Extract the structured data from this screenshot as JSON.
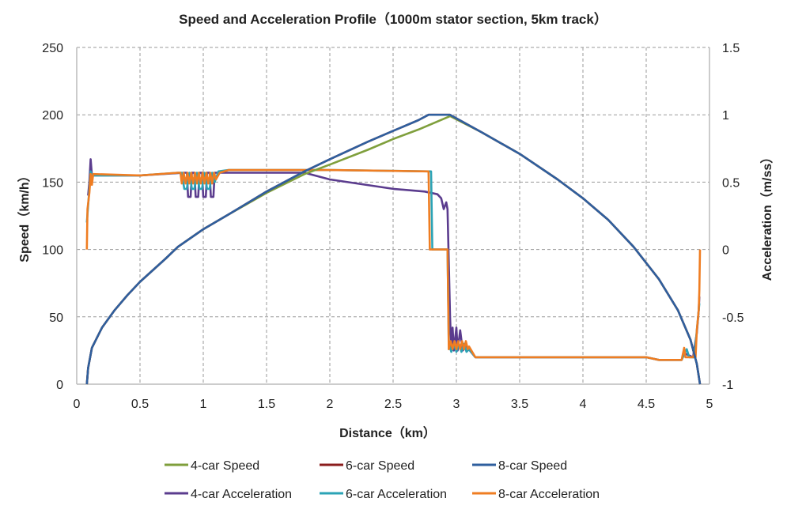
{
  "chart_data": {
    "type": "line",
    "title": "Speed and Acceleration Profile（1000m stator section, 5km track）",
    "xlabel": "Distance（km）",
    "ylabel": "Speed（km/h）",
    "y2label": "Acceleration（m/ss）",
    "xlim": [
      0,
      5
    ],
    "ylim": [
      0,
      250
    ],
    "y2lim": [
      -1,
      1.5
    ],
    "x_ticks": [
      "0",
      "0.5",
      "1",
      "1.5",
      "2",
      "2.5",
      "3",
      "3.5",
      "4",
      "4.5",
      "5"
    ],
    "y_ticks": [
      "0",
      "50",
      "100",
      "150",
      "200",
      "250"
    ],
    "y2_ticks": [
      "-1",
      "-0.5",
      "0",
      "0.5",
      "1",
      "1.5"
    ],
    "grid": true,
    "legend_position": "bottom",
    "series": [
      {
        "name": "4-car Speed",
        "axis": "left",
        "color": "#7f9f3c",
        "points": [
          [
            0.08,
            0
          ],
          [
            0.09,
            12
          ],
          [
            0.12,
            27
          ],
          [
            0.2,
            42
          ],
          [
            0.3,
            55
          ],
          [
            0.4,
            66
          ],
          [
            0.5,
            76
          ],
          [
            0.7,
            93
          ],
          [
            0.8,
            102
          ],
          [
            1.0,
            115
          ],
          [
            1.2,
            126
          ],
          [
            1.5,
            142
          ],
          [
            1.8,
            156
          ],
          [
            2.0,
            163
          ],
          [
            2.3,
            174
          ],
          [
            2.5,
            182
          ],
          [
            2.7,
            189
          ],
          [
            2.95,
            199
          ],
          [
            3.2,
            187
          ],
          [
            3.5,
            171
          ],
          [
            3.8,
            152
          ],
          [
            4.0,
            138
          ],
          [
            4.2,
            122
          ],
          [
            4.4,
            102
          ],
          [
            4.6,
            78
          ],
          [
            4.75,
            55
          ],
          [
            4.85,
            33
          ],
          [
            4.9,
            15
          ],
          [
            4.925,
            0
          ]
        ]
      },
      {
        "name": "6-car Speed",
        "axis": "left",
        "color": "#8b1d1d",
        "points": [
          [
            0.08,
            0
          ],
          [
            0.09,
            12
          ],
          [
            0.12,
            27
          ],
          [
            0.2,
            42
          ],
          [
            0.3,
            55
          ],
          [
            0.4,
            66
          ],
          [
            0.5,
            76
          ],
          [
            0.7,
            93
          ],
          [
            0.8,
            102
          ],
          [
            1.0,
            115
          ],
          [
            1.2,
            126
          ],
          [
            1.5,
            143
          ],
          [
            1.8,
            158
          ],
          [
            2.0,
            167
          ],
          [
            2.3,
            180
          ],
          [
            2.5,
            188
          ],
          [
            2.7,
            196
          ],
          [
            2.78,
            200
          ],
          [
            2.95,
            200
          ],
          [
            3.2,
            187
          ],
          [
            3.5,
            171
          ],
          [
            3.8,
            152
          ],
          [
            4.0,
            138
          ],
          [
            4.2,
            122
          ],
          [
            4.4,
            102
          ],
          [
            4.6,
            78
          ],
          [
            4.75,
            55
          ],
          [
            4.85,
            33
          ],
          [
            4.9,
            15
          ],
          [
            4.925,
            0
          ]
        ]
      },
      {
        "name": "8-car Speed",
        "axis": "left",
        "color": "#2f5f9e",
        "points": [
          [
            0.08,
            0
          ],
          [
            0.09,
            12
          ],
          [
            0.12,
            27
          ],
          [
            0.2,
            42
          ],
          [
            0.3,
            55
          ],
          [
            0.4,
            66
          ],
          [
            0.5,
            76
          ],
          [
            0.7,
            93
          ],
          [
            0.8,
            102
          ],
          [
            1.0,
            115
          ],
          [
            1.2,
            126
          ],
          [
            1.5,
            143
          ],
          [
            1.8,
            158
          ],
          [
            2.0,
            167
          ],
          [
            2.3,
            180
          ],
          [
            2.5,
            188
          ],
          [
            2.7,
            196
          ],
          [
            2.78,
            200
          ],
          [
            2.95,
            200
          ],
          [
            3.2,
            187
          ],
          [
            3.5,
            171
          ],
          [
            3.8,
            152
          ],
          [
            4.0,
            138
          ],
          [
            4.2,
            122
          ],
          [
            4.4,
            102
          ],
          [
            4.6,
            78
          ],
          [
            4.75,
            55
          ],
          [
            4.85,
            33
          ],
          [
            4.9,
            15
          ],
          [
            4.925,
            0
          ]
        ]
      },
      {
        "name": "4-car Acceleration",
        "axis": "right",
        "color": "#5b3c8e",
        "points": [
          [
            0.09,
            0.4
          ],
          [
            0.1,
            0.5
          ],
          [
            0.11,
            0.67
          ],
          [
            0.12,
            0.55
          ],
          [
            0.5,
            0.55
          ],
          [
            0.85,
            0.57
          ],
          [
            0.87,
            0.57
          ],
          [
            0.88,
            0.39
          ],
          [
            0.9,
            0.39
          ],
          [
            0.91,
            0.57
          ],
          [
            0.93,
            0.57
          ],
          [
            0.94,
            0.39
          ],
          [
            0.96,
            0.39
          ],
          [
            0.97,
            0.57
          ],
          [
            0.99,
            0.57
          ],
          [
            1.0,
            0.39
          ],
          [
            1.02,
            0.39
          ],
          [
            1.03,
            0.57
          ],
          [
            1.05,
            0.57
          ],
          [
            1.06,
            0.39
          ],
          [
            1.08,
            0.39
          ],
          [
            1.09,
            0.57
          ],
          [
            1.15,
            0.57
          ],
          [
            1.8,
            0.57
          ],
          [
            2.0,
            0.52
          ],
          [
            2.5,
            0.45
          ],
          [
            2.75,
            0.43
          ],
          [
            2.85,
            0.41
          ],
          [
            2.88,
            0.38
          ],
          [
            2.9,
            0.3
          ],
          [
            2.92,
            0.35
          ],
          [
            2.93,
            0.3
          ],
          [
            2.95,
            -0.5
          ],
          [
            2.96,
            -0.75
          ],
          [
            2.97,
            -0.58
          ],
          [
            2.98,
            -0.75
          ],
          [
            3.0,
            -0.58
          ],
          [
            3.01,
            -0.75
          ],
          [
            3.03,
            -0.6
          ],
          [
            3.05,
            -0.75
          ],
          [
            3.08,
            -0.72
          ],
          [
            3.15,
            -0.8
          ],
          [
            3.2,
            -0.8
          ],
          [
            4.0,
            -0.8
          ],
          [
            4.5,
            -0.8
          ],
          [
            4.6,
            -0.82
          ],
          [
            4.78,
            -0.82
          ],
          [
            4.8,
            -0.77
          ],
          [
            4.87,
            -0.8
          ],
          [
            4.9,
            -0.62
          ],
          [
            4.915,
            -0.45
          ],
          [
            4.92,
            -0.35
          ]
        ]
      },
      {
        "name": "6-car Acceleration",
        "axis": "right",
        "color": "#2ba3b6",
        "points": [
          [
            0.08,
            0.2
          ],
          [
            0.1,
            0.45
          ],
          [
            0.11,
            0.58
          ],
          [
            0.12,
            0.55
          ],
          [
            0.5,
            0.55
          ],
          [
            0.8,
            0.57
          ],
          [
            0.83,
            0.57
          ],
          [
            0.85,
            0.45
          ],
          [
            0.87,
            0.45
          ],
          [
            0.89,
            0.57
          ],
          [
            0.91,
            0.45
          ],
          [
            0.93,
            0.45
          ],
          [
            0.95,
            0.57
          ],
          [
            0.97,
            0.45
          ],
          [
            0.99,
            0.45
          ],
          [
            1.01,
            0.57
          ],
          [
            1.03,
            0.45
          ],
          [
            1.05,
            0.45
          ],
          [
            1.07,
            0.57
          ],
          [
            1.09,
            0.5
          ],
          [
            1.12,
            0.58
          ],
          [
            1.2,
            0.59
          ],
          [
            2.0,
            0.59
          ],
          [
            2.8,
            0.58
          ],
          [
            2.81,
            0
          ],
          [
            2.93,
            0
          ],
          [
            2.94,
            -0.7
          ],
          [
            2.96,
            -0.76
          ],
          [
            2.98,
            -0.7
          ],
          [
            3.0,
            -0.76
          ],
          [
            3.02,
            -0.7
          ],
          [
            3.04,
            -0.76
          ],
          [
            3.06,
            -0.7
          ],
          [
            3.08,
            -0.76
          ],
          [
            3.1,
            -0.74
          ],
          [
            3.15,
            -0.8
          ],
          [
            4.5,
            -0.8
          ],
          [
            4.6,
            -0.82
          ],
          [
            4.78,
            -0.82
          ],
          [
            4.82,
            -0.74
          ],
          [
            4.84,
            -0.8
          ],
          [
            4.88,
            -0.8
          ],
          [
            4.9,
            -0.6
          ],
          [
            4.92,
            -0.4
          ]
        ]
      },
      {
        "name": "8-car Acceleration",
        "axis": "right",
        "color": "#ef7d22",
        "points": [
          [
            0.08,
            0
          ],
          [
            0.085,
            0.3
          ],
          [
            0.1,
            0.42
          ],
          [
            0.11,
            0.56
          ],
          [
            0.12,
            0.48
          ],
          [
            0.13,
            0.56
          ],
          [
            0.5,
            0.55
          ],
          [
            0.8,
            0.57
          ],
          [
            0.82,
            0.57
          ],
          [
            0.83,
            0.49
          ],
          [
            0.845,
            0.57
          ],
          [
            0.86,
            0.49
          ],
          [
            0.875,
            0.57
          ],
          [
            0.89,
            0.49
          ],
          [
            0.905,
            0.57
          ],
          [
            0.92,
            0.49
          ],
          [
            0.935,
            0.57
          ],
          [
            0.95,
            0.49
          ],
          [
            0.965,
            0.57
          ],
          [
            0.98,
            0.49
          ],
          [
            0.995,
            0.57
          ],
          [
            1.01,
            0.49
          ],
          [
            1.025,
            0.57
          ],
          [
            1.04,
            0.49
          ],
          [
            1.055,
            0.57
          ],
          [
            1.07,
            0.49
          ],
          [
            1.085,
            0.57
          ],
          [
            1.1,
            0.52
          ],
          [
            1.13,
            0.57
          ],
          [
            1.2,
            0.59
          ],
          [
            2.0,
            0.59
          ],
          [
            2.78,
            0.58
          ],
          [
            2.79,
            0
          ],
          [
            2.93,
            0
          ],
          [
            2.94,
            -0.74
          ],
          [
            2.955,
            -0.68
          ],
          [
            2.97,
            -0.74
          ],
          [
            2.985,
            -0.68
          ],
          [
            3.0,
            -0.74
          ],
          [
            3.015,
            -0.68
          ],
          [
            3.03,
            -0.74
          ],
          [
            3.045,
            -0.68
          ],
          [
            3.06,
            -0.74
          ],
          [
            3.075,
            -0.68
          ],
          [
            3.09,
            -0.74
          ],
          [
            3.1,
            -0.72
          ],
          [
            3.15,
            -0.8
          ],
          [
            4.0,
            -0.8
          ],
          [
            4.5,
            -0.8
          ],
          [
            4.6,
            -0.82
          ],
          [
            4.78,
            -0.82
          ],
          [
            4.8,
            -0.73
          ],
          [
            4.81,
            -0.8
          ],
          [
            4.87,
            -0.8
          ],
          [
            4.88,
            -0.77
          ],
          [
            4.89,
            -0.8
          ],
          [
            4.9,
            -0.6
          ],
          [
            4.915,
            -0.45
          ],
          [
            4.92,
            -0.3
          ],
          [
            4.925,
            0
          ]
        ]
      }
    ]
  }
}
